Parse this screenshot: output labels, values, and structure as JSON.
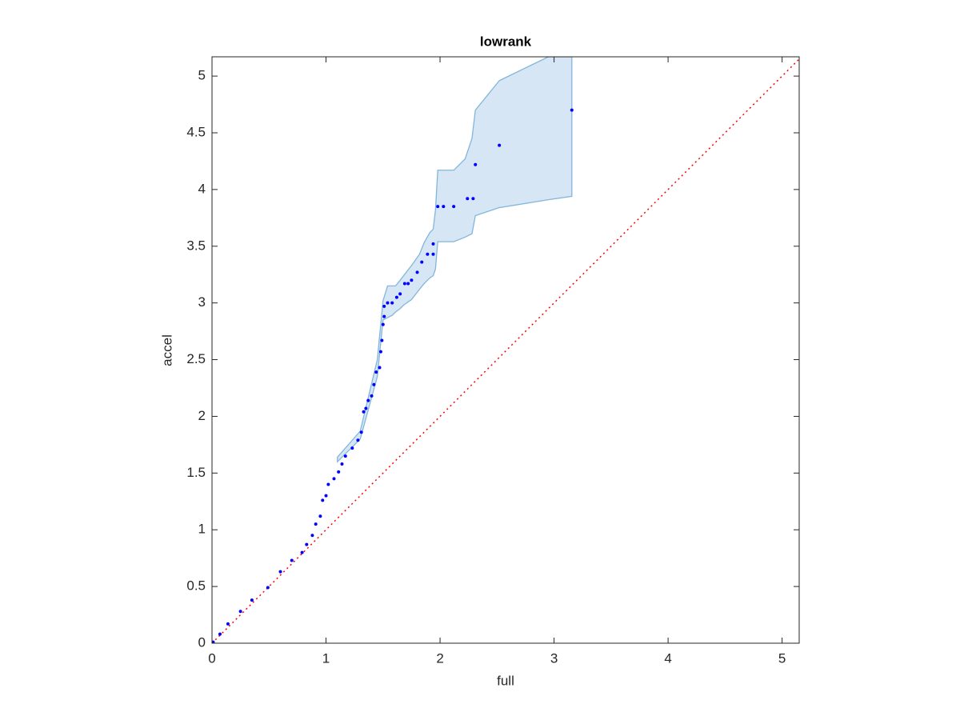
{
  "chart_data": {
    "type": "scatter",
    "title": "lowrank",
    "x_label": "full",
    "y_label": "accel",
    "xlim": [
      0,
      5.15
    ],
    "ylim": [
      0,
      5.17
    ],
    "xticks": [
      0,
      1,
      2,
      3,
      4,
      5
    ],
    "yticks": [
      0,
      0.5,
      1,
      1.5,
      2,
      2.5,
      3,
      3.5,
      4,
      4.5,
      5
    ],
    "series": [
      {
        "color": "#0000ff",
        "x": [
          0.01,
          0.07,
          0.14,
          0.25,
          0.35,
          0.49,
          0.6,
          0.7,
          0.79,
          0.83,
          0.88,
          0.91,
          0.95,
          0.97,
          1.0,
          1.02,
          1.07,
          1.11,
          1.14,
          1.17,
          1.23,
          1.28,
          1.31,
          1.33,
          1.35,
          1.37,
          1.4,
          1.42,
          1.44,
          1.47,
          1.48,
          1.49,
          1.5,
          1.51,
          1.51,
          1.54,
          1.58,
          1.62,
          1.65,
          1.69,
          1.72,
          1.75,
          1.8,
          1.84,
          1.89,
          1.94,
          1.94,
          1.98,
          2.03,
          2.12,
          2.24,
          2.29,
          2.31,
          2.52,
          3.156
        ],
        "values": [
          0.01,
          0.08,
          0.17,
          0.28,
          0.38,
          0.49,
          0.63,
          0.73,
          0.8,
          0.87,
          0.95,
          1.05,
          1.12,
          1.26,
          1.3,
          1.4,
          1.45,
          1.51,
          1.58,
          1.65,
          1.72,
          1.79,
          1.86,
          2.04,
          2.07,
          2.14,
          2.18,
          2.28,
          2.39,
          2.43,
          2.57,
          2.67,
          2.81,
          2.88,
          2.97,
          3.0,
          3.0,
          3.05,
          3.08,
          3.17,
          3.17,
          3.2,
          3.27,
          3.36,
          3.43,
          3.43,
          3.52,
          3.85,
          3.85,
          3.85,
          3.92,
          3.92,
          4.22,
          4.39,
          4.7
        ]
      }
    ],
    "band": {
      "color": "#d6e6f4",
      "edge_color": "#82b6dc",
      "x": [
        1.1,
        1.3,
        1.45,
        1.5,
        1.54,
        1.58,
        1.61,
        1.65,
        1.68,
        1.75,
        1.82,
        1.86,
        1.91,
        1.94,
        1.96,
        1.98,
        2.12,
        2.22,
        2.28,
        2.31,
        2.52,
        2.95,
        3.156
      ],
      "upper": [
        1.64,
        1.87,
        2.5,
        3.02,
        3.15,
        3.15,
        3.15,
        3.2,
        3.24,
        3.33,
        3.43,
        3.53,
        3.62,
        3.65,
        3.82,
        4.17,
        4.17,
        4.27,
        4.45,
        4.7,
        4.96,
        5.17,
        5.17
      ],
      "lower": [
        1.6,
        1.8,
        2.35,
        2.85,
        2.87,
        2.89,
        2.92,
        2.95,
        2.98,
        3.03,
        3.12,
        3.17,
        3.22,
        3.24,
        3.3,
        3.54,
        3.54,
        3.58,
        3.61,
        3.77,
        3.84,
        3.91,
        3.94
      ]
    },
    "reference_line": {
      "color": "#ff0000",
      "x": [
        0,
        5.15
      ],
      "values": [
        0,
        5.15
      ]
    }
  }
}
